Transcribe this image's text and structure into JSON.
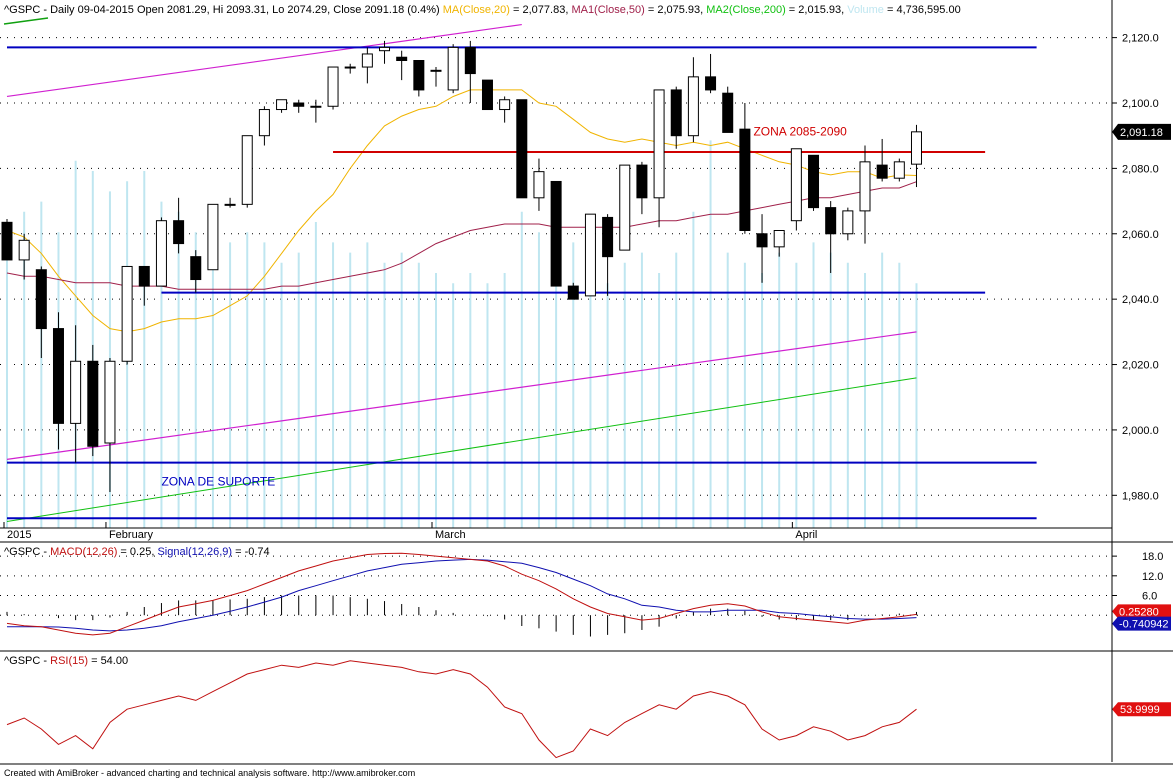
{
  "header": {
    "main": [
      {
        "text": "^GSPC - Daily 09-04-2015 Open 2081.29, Hi 2093.31, Lo 2074.29, Close 2091.18 (0.4%) ",
        "color": "#000000"
      },
      {
        "text": "MA(Close,20)",
        "color": "#f0b400"
      },
      {
        "text": " = 2,077.83, ",
        "color": "#000000"
      },
      {
        "text": "MA1(Close,50)",
        "color": "#a0204a"
      },
      {
        "text": " = 2,075.93, ",
        "color": "#000000"
      },
      {
        "text": "MA2(Close,200)",
        "color": "#10c010"
      },
      {
        "text": " = 2,015.93, ",
        "color": "#000000"
      },
      {
        "text": "Volume",
        "color": "#bfe6f0"
      },
      {
        "text": " = 4,736,595.00",
        "color": "#000000"
      }
    ],
    "macd": [
      {
        "text": "^GSPC - ",
        "color": "#000000"
      },
      {
        "text": "MACD(12,26)",
        "color": "#c01010"
      },
      {
        "text": " = 0.25, ",
        "color": "#000000"
      },
      {
        "text": "Signal(12,26,9)",
        "color": "#1010b0"
      },
      {
        "text": " = -0.74",
        "color": "#000000"
      }
    ],
    "rsi": [
      {
        "text": "^GSPC - ",
        "color": "#000000"
      },
      {
        "text": "RSI(15)",
        "color": "#c01010"
      },
      {
        "text": " = 54.00",
        "color": "#000000"
      }
    ]
  },
  "footer": "Created with AmiBroker - advanced charting and technical analysis software. http://www.amibroker.com",
  "chart_data": [
    {
      "type": "candlestick",
      "name": "^GSPC",
      "x_axis": {
        "labels": [
          "2015",
          "February",
          "March",
          "April"
        ],
        "label_bars": [
          0,
          6,
          25,
          46
        ]
      },
      "y_axis": {
        "ticks": [
          "2,120.0",
          "2,100.0",
          "2,080.0",
          "2,060.0",
          "2,040.0",
          "2,020.0",
          "2,000.0",
          "1,980.0"
        ],
        "tick_values": [
          2120,
          2100,
          2080,
          2060,
          2040,
          2020,
          2000,
          1980
        ],
        "range": [
          1970,
          2126
        ],
        "last_value_label": "2,091.18"
      },
      "grid": "dotted-horizontal",
      "candles": [
        {
          "o": 2063.5,
          "h": 2064.5,
          "l": 2052,
          "c": 2052
        },
        {
          "o": 2052,
          "h": 2060,
          "l": 2046,
          "c": 2058
        },
        {
          "o": 2049,
          "h": 2050,
          "l": 2022,
          "c": 2031
        },
        {
          "o": 2031,
          "h": 2036,
          "l": 1994,
          "c": 2002
        },
        {
          "o": 2002,
          "h": 2032,
          "l": 1990,
          "c": 2021
        },
        {
          "o": 2021,
          "h": 2026,
          "l": 1992,
          "c": 1995
        },
        {
          "o": 1996,
          "h": 2022,
          "l": 1981,
          "c": 2021
        },
        {
          "o": 2021,
          "h": 2050,
          "l": 2020,
          "c": 2050
        },
        {
          "o": 2050,
          "h": 2050,
          "l": 2038,
          "c": 2044
        },
        {
          "o": 2044,
          "h": 2065,
          "l": 2044,
          "c": 2064
        },
        {
          "o": 2064,
          "h": 2071,
          "l": 2054,
          "c": 2057
        },
        {
          "o": 2053,
          "h": 2055,
          "l": 2042,
          "c": 2046
        },
        {
          "o": 2049,
          "h": 2069,
          "l": 2049,
          "c": 2069
        },
        {
          "o": 2069,
          "h": 2071,
          "l": 2068,
          "c": 2069
        },
        {
          "o": 2069,
          "h": 2090,
          "l": 2068,
          "c": 2090
        },
        {
          "o": 2090,
          "h": 2099,
          "l": 2087,
          "c": 2098
        },
        {
          "o": 2098,
          "h": 2101,
          "l": 2097,
          "c": 2101
        },
        {
          "o": 2100,
          "h": 2101,
          "l": 2097,
          "c": 2099
        },
        {
          "o": 2099,
          "h": 2101,
          "l": 2094,
          "c": 2099
        },
        {
          "o": 2099,
          "h": 2111,
          "l": 2098,
          "c": 2111
        },
        {
          "o": 2111,
          "h": 2112,
          "l": 2109,
          "c": 2111
        },
        {
          "o": 2111,
          "h": 2117,
          "l": 2106,
          "c": 2115
        },
        {
          "o": 2116,
          "h": 2119,
          "l": 2112,
          "c": 2117
        },
        {
          "o": 2114,
          "h": 2116,
          "l": 2107,
          "c": 2113
        },
        {
          "o": 2113,
          "h": 2113,
          "l": 2102,
          "c": 2104
        },
        {
          "o": 2110,
          "h": 2111,
          "l": 2105,
          "c": 2110
        },
        {
          "o": 2104,
          "h": 2118,
          "l": 2103,
          "c": 2117
        },
        {
          "o": 2117,
          "h": 2119,
          "l": 2100,
          "c": 2109
        },
        {
          "o": 2107,
          "h": 2107,
          "l": 2098,
          "c": 2098
        },
        {
          "o": 2098,
          "h": 2102,
          "l": 2094,
          "c": 2101
        },
        {
          "o": 2101,
          "h": 2101,
          "l": 2071,
          "c": 2071
        },
        {
          "o": 2071,
          "h": 2083,
          "l": 2067,
          "c": 2079
        },
        {
          "o": 2076,
          "h": 2076,
          "l": 2044,
          "c": 2044
        },
        {
          "o": 2044,
          "h": 2045,
          "l": 2040,
          "c": 2040
        },
        {
          "o": 2041,
          "h": 2066,
          "l": 2041,
          "c": 2066
        },
        {
          "o": 2065,
          "h": 2066,
          "l": 2041,
          "c": 2053
        },
        {
          "o": 2055,
          "h": 2081,
          "l": 2055,
          "c": 2081
        },
        {
          "o": 2081,
          "h": 2082,
          "l": 2066,
          "c": 2071
        },
        {
          "o": 2071,
          "h": 2104,
          "l": 2062,
          "c": 2104
        },
        {
          "o": 2104,
          "h": 2105,
          "l": 2086,
          "c": 2090
        },
        {
          "o": 2090,
          "h": 2114,
          "l": 2088,
          "c": 2108
        },
        {
          "o": 2108,
          "h": 2115,
          "l": 2103,
          "c": 2104
        },
        {
          "o": 2103,
          "h": 2105,
          "l": 2091,
          "c": 2091
        },
        {
          "o": 2092,
          "h": 2100,
          "l": 2060,
          "c": 2061
        },
        {
          "o": 2060,
          "h": 2066,
          "l": 2045,
          "c": 2056
        },
        {
          "o": 2056,
          "h": 2061,
          "l": 2053,
          "c": 2061
        },
        {
          "o": 2064,
          "h": 2086,
          "l": 2061,
          "c": 2086
        },
        {
          "o": 2084,
          "h": 2084,
          "l": 2067,
          "c": 2068
        },
        {
          "o": 2068,
          "h": 2070,
          "l": 2048,
          "c": 2060
        },
        {
          "o": 2060,
          "h": 2068,
          "l": 2058,
          "c": 2067
        },
        {
          "o": 2067,
          "h": 2087,
          "l": 2057,
          "c": 2082
        },
        {
          "o": 2081,
          "h": 2089,
          "l": 2076,
          "c": 2077
        },
        {
          "o": 2077,
          "h": 2083,
          "l": 2076,
          "c": 2082
        },
        {
          "o": 2081.29,
          "h": 2093.31,
          "l": 2074.29,
          "c": 2091.18
        }
      ],
      "ma20": [
        2061,
        2059,
        2054,
        2047,
        2041,
        2035,
        2031,
        2030,
        2031,
        2033,
        2034,
        2034,
        2035,
        2038,
        2041,
        2047,
        2054,
        2061,
        2067,
        2072,
        2080,
        2087,
        2093,
        2096,
        2098,
        2099,
        2102,
        2104,
        2104,
        2104,
        2104,
        2100,
        2099,
        2095,
        2091,
        2089,
        2088,
        2089,
        2088,
        2087,
        2088,
        2087,
        2088,
        2086,
        2084,
        2082,
        2081,
        2079,
        2078,
        2079,
        2079,
        2077,
        2078,
        2077.83
      ],
      "ma50": [
        2048,
        2047,
        2047,
        2046,
        2045,
        2045,
        2045,
        2044,
        2044,
        2044,
        2043,
        2043,
        2043,
        2043,
        2043,
        2043,
        2044,
        2044,
        2045,
        2046,
        2047,
        2048,
        2049,
        2051,
        2054,
        2057,
        2059,
        2061,
        2062,
        2063,
        2063,
        2063,
        2062,
        2062,
        2062,
        2062,
        2062,
        2063,
        2064,
        2064,
        2065,
        2066,
        2066,
        2067,
        2068,
        2069,
        2070,
        2071,
        2071,
        2072,
        2073,
        2074,
        2074,
        2075.93
      ],
      "ma2_200_line": {
        "from": 1972,
        "to": 2015.93
      },
      "trendlines": [
        {
          "color": "#d020d0",
          "from": {
            "bar": 0,
            "value": 2102
          },
          "to": {
            "bar": 30,
            "value": 2124
          }
        },
        {
          "color": "#d020d0",
          "from": {
            "bar": 0,
            "value": 1991
          },
          "to": {
            "bar": 53,
            "value": 2030
          }
        },
        {
          "color": "#d00000",
          "from": {
            "bar": 19,
            "value": 2085
          },
          "to": {
            "bar": 57,
            "value": 2085
          }
        },
        {
          "color": "#0000c0",
          "from": {
            "bar": 0,
            "value": 2117
          },
          "to": {
            "bar": 60,
            "value": 2117
          }
        },
        {
          "color": "#0000c0",
          "from": {
            "bar": 9,
            "value": 2042
          },
          "to": {
            "bar": 57,
            "value": 2042
          }
        },
        {
          "color": "#0000c0",
          "from": {
            "bar": 0,
            "value": 1990
          },
          "to": {
            "bar": 60,
            "value": 1990
          }
        },
        {
          "color": "#0000c0",
          "from": {
            "bar": 0,
            "value": 1973
          },
          "to": {
            "bar": 60,
            "value": 1973
          }
        }
      ],
      "annotations": [
        {
          "text": "ZONA 2085-2090",
          "color": "#d00000",
          "bar": 43.5,
          "value": 2090
        },
        {
          "text": "ZONA DE SUPORTE",
          "color": "#0000c0",
          "bar": 9,
          "value": 1983
        }
      ],
      "volume": [
        60,
        62,
        64,
        58,
        72,
        70,
        66,
        68,
        70,
        64,
        62,
        58,
        56,
        56,
        58,
        56,
        52,
        54,
        60,
        56,
        54,
        56,
        52,
        54,
        52,
        50,
        48,
        50,
        48,
        50,
        62,
        58,
        52,
        56,
        50,
        48,
        52,
        54,
        50,
        54,
        62,
        76,
        54,
        52,
        50,
        54,
        52,
        56,
        54,
        52,
        50,
        54,
        52,
        48
      ]
    },
    {
      "type": "line",
      "name": "MACD(12,26)",
      "y_axis": {
        "ticks": [
          "18.0",
          "12.0",
          "6.0"
        ],
        "tick_values": [
          18,
          12,
          6
        ],
        "range": [
          -10,
          22
        ]
      },
      "series": [
        {
          "name": "MACD(12,26)",
          "color": "#c01010",
          "values": [
            -2.5,
            -3.2,
            -3.5,
            -4.5,
            -5.5,
            -6.0,
            -5.5,
            -3.5,
            -1.5,
            0.5,
            2.5,
            3.5,
            4.5,
            6.0,
            7.5,
            9.5,
            11.5,
            13.5,
            15.0,
            16.5,
            17.5,
            18.5,
            18.8,
            18.9,
            18.5,
            18.0,
            17.5,
            17.0,
            16.5,
            15.0,
            12.5,
            10.5,
            8.0,
            5.0,
            2.5,
            0.5,
            -0.5,
            -1.5,
            -1.0,
            0.5,
            2.0,
            3.0,
            3.5,
            2.8,
            1.0,
            -0.5,
            -1.0,
            -1.5,
            -2.0,
            -2.5,
            -1.5,
            -1.0,
            -0.5,
            0.25
          ]
        },
        {
          "name": "Signal(12,26,9)",
          "color": "#1010b0",
          "values": [
            -3.5,
            -3.5,
            -3.5,
            -3.6,
            -4.0,
            -4.5,
            -4.8,
            -4.5,
            -4.0,
            -3.2,
            -2.0,
            -1.0,
            0.0,
            1.2,
            2.5,
            4.0,
            5.5,
            7.5,
            9.0,
            10.5,
            12.0,
            13.5,
            14.5,
            15.5,
            16.0,
            16.5,
            16.8,
            17.0,
            16.8,
            16.3,
            15.8,
            14.5,
            13.0,
            11.0,
            9.0,
            6.5,
            5.0,
            3.0,
            2.5,
            1.5,
            1.0,
            1.0,
            1.5,
            1.5,
            1.5,
            0.8,
            0.5,
            0.0,
            -0.5,
            -1.0,
            -1.2,
            -1.2,
            -1.0,
            -0.74
          ]
        }
      ],
      "histogram": [
        1.0,
        0.3,
        0.0,
        -0.9,
        -1.5,
        -1.5,
        -0.7,
        1.0,
        2.5,
        3.7,
        4.5,
        4.5,
        4.5,
        4.8,
        5.0,
        5.5,
        6.0,
        6.0,
        6.0,
        6.0,
        5.5,
        5.0,
        4.3,
        3.4,
        2.5,
        1.5,
        0.7,
        0.0,
        -0.3,
        -1.3,
        -3.3,
        -4.0,
        -5.0,
        -6.0,
        -6.5,
        -6.0,
        -5.5,
        -4.5,
        -3.5,
        -1.0,
        1.0,
        2.0,
        2.0,
        1.3,
        -0.5,
        -1.3,
        -1.5,
        -1.5,
        -1.5,
        -1.5,
        -0.3,
        0.2,
        0.5,
        0.99
      ],
      "last_value_labels": [
        "0.25280",
        "-0.740942"
      ]
    },
    {
      "type": "line",
      "name": "RSI(15)",
      "y_axis": {
        "range": [
          30,
          80
        ]
      },
      "series": [
        {
          "name": "RSI(15)",
          "color": "#c01010",
          "values": [
            47,
            50,
            45,
            38,
            42,
            36,
            48,
            54,
            56,
            58,
            60,
            58,
            62,
            66,
            70,
            72,
            74,
            73,
            75,
            74,
            76,
            75,
            74,
            73,
            71,
            70,
            72,
            70,
            64,
            55,
            52,
            40,
            32,
            35,
            45,
            42,
            48,
            52,
            56,
            54,
            60,
            62,
            60,
            56,
            45,
            40,
            42,
            46,
            44,
            40,
            42,
            46,
            48,
            54.0
          ]
        }
      ],
      "last_value_label": "53.9999"
    }
  ]
}
